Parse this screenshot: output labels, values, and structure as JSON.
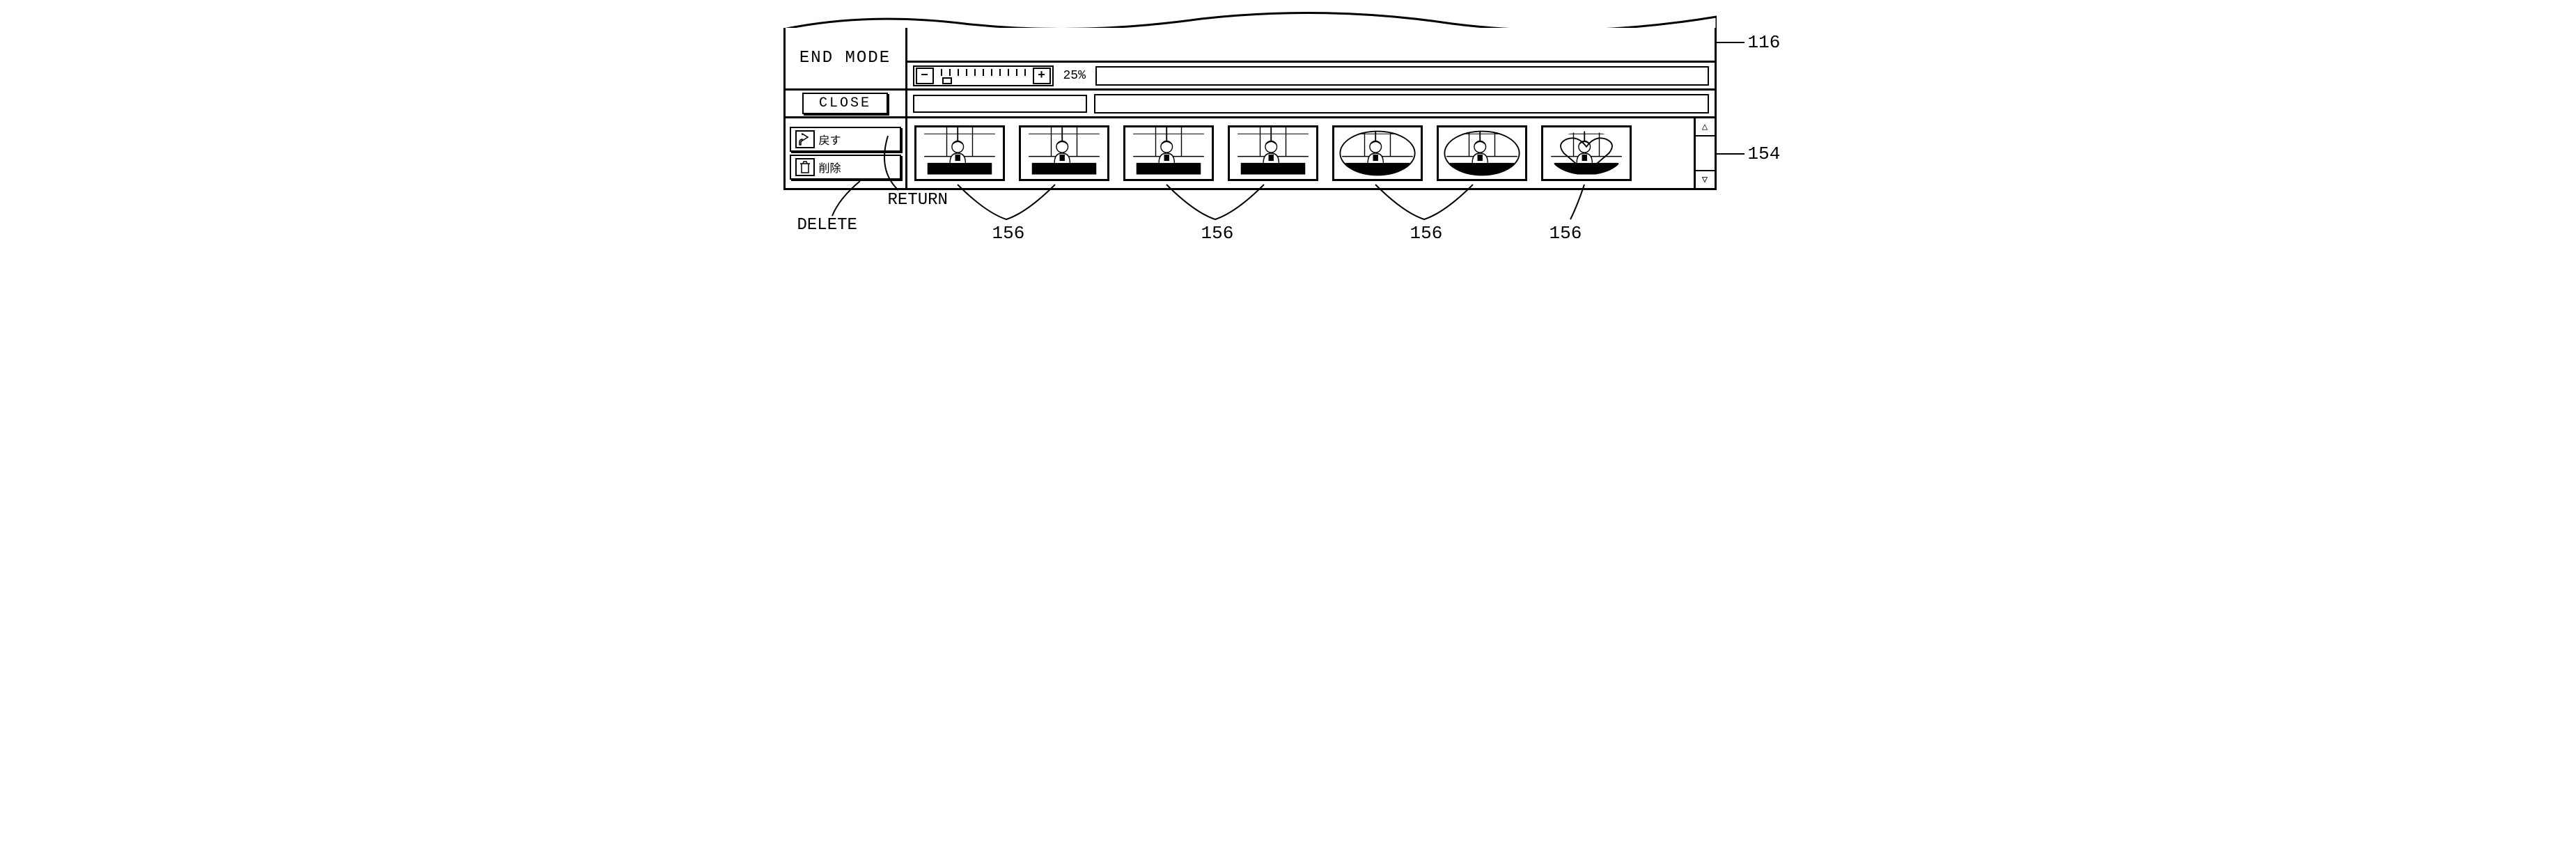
{
  "colors": {
    "stroke": "#000000",
    "background": "#ffffff"
  },
  "header": {
    "end_mode": "END MODE"
  },
  "zoom": {
    "minus": "−",
    "plus": "+",
    "percent": "25%",
    "tick_count": 11,
    "thumb_index": 1
  },
  "close": {
    "label": "CLOSE"
  },
  "actions": {
    "return_jp": "戻す",
    "delete_jp": "削除"
  },
  "scroll": {
    "up": "△",
    "down": "▽"
  },
  "callouts": {
    "ref_116": "116",
    "ref_154": "154",
    "ref_156": "156",
    "return_en": "RETURN",
    "delete_en": "DELETE"
  },
  "thumbnail_shapes": [
    "rect",
    "rect",
    "rect",
    "rect",
    "oval",
    "oval",
    "heart"
  ]
}
